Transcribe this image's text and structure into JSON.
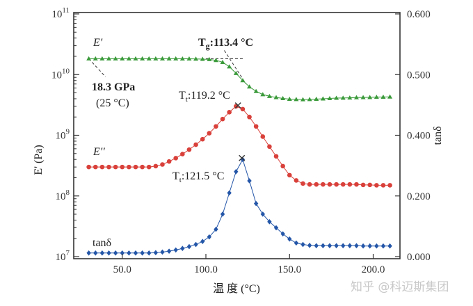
{
  "chart_data": {
    "type": "line",
    "title": "",
    "xlabel": "温 度 (°C)",
    "ylabel_left": "E' (Pa)",
    "ylabel_right": "tanδ",
    "xlim": [
      21,
      216
    ],
    "ylim_left": [
      10000000.0,
      100000000000.0
    ],
    "yscale_left": "log",
    "x_ticks": [
      "50.0",
      "100.0",
      "150.0",
      "200.0"
    ],
    "x_tick_values": [
      50,
      100,
      150,
      200
    ],
    "y_left_ticks": [
      {
        "base": "10",
        "exp": "7"
      },
      {
        "base": "10",
        "exp": "8"
      },
      {
        "base": "10",
        "exp": "9"
      },
      {
        "base": "10",
        "exp": "10"
      },
      {
        "base": "10",
        "exp": "11"
      }
    ],
    "y_right_ticks": [
      "0.000",
      "0.200",
      "0.400",
      "0.500",
      "0.600"
    ],
    "grid": false,
    "x": [
      30,
      34,
      38,
      42,
      46,
      50,
      54,
      58,
      62,
      66,
      70,
      74,
      78,
      82,
      86,
      90,
      94,
      98,
      102,
      106,
      110,
      114,
      118,
      122,
      126,
      130,
      134,
      138,
      142,
      146,
      150,
      154,
      158,
      162,
      166,
      170,
      174,
      178,
      182,
      186,
      190,
      194,
      198,
      202,
      206,
      210
    ],
    "series": [
      {
        "name": "E'",
        "axis": "left",
        "color": "#3a9a3a",
        "marker": "triangle",
        "values": [
          18300000000.0,
          18300000000.0,
          18300000000.0,
          18300000000.0,
          18300000000.0,
          18300000000.0,
          18300000000.0,
          18300000000.0,
          18300000000.0,
          18300000000.0,
          18300000000.0,
          18300000000.0,
          18300000000.0,
          18300000000.0,
          18200000000.0,
          18200000000.0,
          18100000000.0,
          18000000000.0,
          17800000000.0,
          17200000000.0,
          16000000000.0,
          13500000000.0,
          10500000000.0,
          8000000000.0,
          6300000000.0,
          5300000000.0,
          4700000000.0,
          4400000000.0,
          4200000000.0,
          4050000000.0,
          3950000000.0,
          3900000000.0,
          3880000000.0,
          3900000000.0,
          3950000000.0,
          4000000000.0,
          4050000000.0,
          4100000000.0,
          4120000000.0,
          4150000000.0,
          4180000000.0,
          4200000000.0,
          4220000000.0,
          4250000000.0,
          4270000000.0,
          4300000000.0
        ]
      },
      {
        "name": "E''",
        "axis": "left",
        "color": "#d9403a",
        "marker": "circle",
        "values": [
          300000000.0,
          300000000.0,
          300000000.0,
          300000000.0,
          300000000.0,
          300000000.0,
          300000000.0,
          300000000.0,
          300000000.0,
          300000000.0,
          310000000.0,
          330000000.0,
          370000000.0,
          420000000.0,
          490000000.0,
          580000000.0,
          700000000.0,
          860000000.0,
          1080000000.0,
          1400000000.0,
          1850000000.0,
          2400000000.0,
          3000000000.0,
          2700000000.0,
          2000000000.0,
          1400000000.0,
          950000000.0,
          650000000.0,
          450000000.0,
          310000000.0,
          220000000.0,
          180000000.0,
          160000000.0,
          155000000.0,
          155000000.0,
          155000000.0,
          155000000.0,
          155000000.0,
          155000000.0,
          155000000.0,
          155000000.0,
          152000000.0,
          152000000.0,
          150000000.0,
          150000000.0,
          150000000.0
        ]
      },
      {
        "name": "tanδ",
        "axis": "right",
        "color": "#2456a8",
        "marker": "diamond",
        "values": [
          0.012,
          0.012,
          0.012,
          0.012,
          0.012,
          0.012,
          0.012,
          0.012,
          0.012,
          0.012,
          0.013,
          0.015,
          0.018,
          0.022,
          0.027,
          0.033,
          0.04,
          0.05,
          0.065,
          0.09,
          0.14,
          0.21,
          0.28,
          0.32,
          0.25,
          0.175,
          0.14,
          0.115,
          0.095,
          0.075,
          0.058,
          0.045,
          0.04,
          0.037,
          0.036,
          0.036,
          0.036,
          0.036,
          0.036,
          0.036,
          0.036,
          0.035,
          0.035,
          0.035,
          0.035,
          0.035
        ]
      }
    ],
    "annotations": {
      "eprime_label": "E'",
      "edouble_label": "E''",
      "tand_label": "tanδ",
      "modulus_value": "18.3 GPa",
      "modulus_temp": "(25 °C)",
      "tg_main": "T",
      "tg_sub": "g",
      "tg_value": ":113.4 °C",
      "tt1_main": "T",
      "tt1_sub": "t",
      "tt1_value": ":119.2 °C",
      "tt2_main": "T",
      "tt2_sub": "t",
      "tt2_value": ":121.5 °C"
    },
    "peaks": [
      {
        "series": "E''",
        "x": 119.2,
        "y": 3100000000.0
      },
      {
        "series": "tanδ",
        "x": 121.5,
        "y": 0.325
      }
    ],
    "tg": {
      "x": 113.4,
      "plateau": 18300000000.0
    }
  },
  "watermark": "知乎 @科迈斯集团"
}
